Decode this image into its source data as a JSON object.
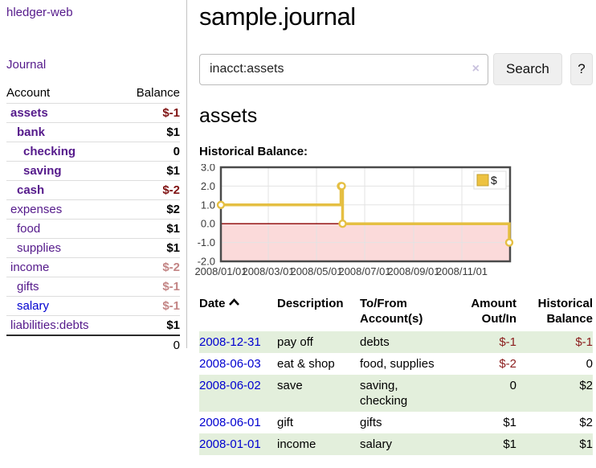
{
  "colors": {
    "link_purple": "#551a8b",
    "link_blue": "#0000d0",
    "negative_red": "#7f1212",
    "negative_soft_red": "#c38585",
    "row_stripe_green": "#e3efdc"
  },
  "sidebar": {
    "brand": "hledger-web",
    "journal_link": "Journal",
    "accounts_table": {
      "headers": {
        "account": "Account",
        "balance": "Balance"
      },
      "rows": [
        {
          "name": "assets",
          "indent": 1,
          "bold": true,
          "balance": "$-1",
          "balance_class": "neg"
        },
        {
          "name": "bank",
          "indent": 2,
          "bold": true,
          "balance": "$1",
          "balance_class": "pos"
        },
        {
          "name": "checking",
          "indent": 3,
          "bold": true,
          "balance": "0",
          "balance_class": "pos"
        },
        {
          "name": "saving",
          "indent": 3,
          "bold": true,
          "balance": "$1",
          "balance_class": "pos"
        },
        {
          "name": "cash",
          "indent": 2,
          "bold": true,
          "balance": "$-2",
          "balance_class": "neg"
        },
        {
          "name": "expenses",
          "indent": 1,
          "bold": false,
          "balance": "$2",
          "balance_class": "pos"
        },
        {
          "name": "food",
          "indent": 2,
          "bold": false,
          "balance": "$1",
          "balance_class": "pos"
        },
        {
          "name": "supplies",
          "indent": 2,
          "bold": false,
          "balance": "$1",
          "balance_class": "pos"
        },
        {
          "name": "income",
          "indent": 1,
          "bold": false,
          "balance": "$-2",
          "balance_class": "neg-soft"
        },
        {
          "name": "gifts",
          "indent": 2,
          "bold": false,
          "balance": "$-1",
          "balance_class": "neg-soft"
        },
        {
          "name": "salary",
          "indent": 2,
          "bold": false,
          "link": "blue",
          "balance": "$-1",
          "balance_class": "neg-soft"
        },
        {
          "name": "liabilities:debts",
          "indent": 1,
          "bold": false,
          "balance": "$1",
          "balance_class": "pos"
        }
      ],
      "total": "0"
    }
  },
  "main": {
    "title": "sample.journal",
    "search": {
      "value": "inacct:assets",
      "clear_icon": "×",
      "button": "Search",
      "help_button": "?"
    },
    "account_heading": "assets",
    "chart_label": "Historical Balance:"
  },
  "chart_data": {
    "type": "line",
    "step": true,
    "title": "Historical Balance",
    "legend": [
      {
        "label": "$",
        "color": "#edc240"
      }
    ],
    "legend_position": "top-right",
    "grid": true,
    "x_range": [
      "2008-01-01",
      "2009-01-01"
    ],
    "y_range": [
      -2,
      3
    ],
    "y_ticks": [
      {
        "label": "3.0",
        "value": 3
      },
      {
        "label": "2.0",
        "value": 2
      },
      {
        "label": "1.0",
        "value": 1
      },
      {
        "label": "0.0",
        "value": 0
      },
      {
        "label": "-1.0",
        "value": -1
      },
      {
        "label": "-2.0",
        "value": -2
      }
    ],
    "x_ticks": [
      {
        "label": "2008/01/01",
        "date": "2008-01-01"
      },
      {
        "label": "2008/03/01",
        "date": "2008-03-01"
      },
      {
        "label": "2008/05/01",
        "date": "2008-05-01"
      },
      {
        "label": "2008/07/01",
        "date": "2008-07-01"
      },
      {
        "label": "2008/09/01",
        "date": "2008-09-01"
      },
      {
        "label": "2008/11/01",
        "date": "2008-11-01"
      }
    ],
    "series": [
      {
        "name": "$",
        "color": "#e5bf42",
        "points": [
          {
            "date": "2008-01-01",
            "value": 1
          },
          {
            "date": "2008-06-01",
            "value": 2
          },
          {
            "date": "2008-06-02",
            "value": 2
          },
          {
            "date": "2008-06-03",
            "value": 0
          },
          {
            "date": "2008-12-31",
            "value": -1
          }
        ]
      }
    ],
    "negative_region_color": "#fbdada",
    "zero_line_color": "#8b0000",
    "grid_color": "#e3e3e3",
    "border_color": "#4a4a4a"
  },
  "transactions": {
    "headers": [
      {
        "lines": [
          "Date"
        ],
        "sortable": true,
        "align": "left"
      },
      {
        "lines": [
          "Description"
        ],
        "align": "left"
      },
      {
        "lines": [
          "To/From",
          "Account(s)"
        ],
        "align": "left"
      },
      {
        "lines": [
          "Amount",
          "Out/In"
        ],
        "align": "right"
      },
      {
        "lines": [
          "Historical",
          "Balance"
        ],
        "align": "right"
      }
    ],
    "rows": [
      {
        "date": "2008-12-31",
        "description": "pay off",
        "accounts": [
          "debts"
        ],
        "amount": "$-1",
        "amount_neg": true,
        "balance": "$-1",
        "balance_neg": true
      },
      {
        "date": "2008-06-03",
        "description": "eat & shop",
        "accounts": [
          "food, supplies"
        ],
        "amount": "$-2",
        "amount_neg": true,
        "balance": "0",
        "balance_neg": false
      },
      {
        "date": "2008-06-02",
        "description": "save",
        "accounts": [
          "saving,",
          "checking"
        ],
        "amount": "0",
        "amount_neg": false,
        "balance": "$2",
        "balance_neg": false
      },
      {
        "date": "2008-06-01",
        "description": "gift",
        "accounts": [
          "gifts"
        ],
        "amount": "$1",
        "amount_neg": false,
        "balance": "$2",
        "balance_neg": false
      },
      {
        "date": "2008-01-01",
        "description": "income",
        "accounts": [
          "salary"
        ],
        "amount": "$1",
        "amount_neg": false,
        "balance": "$1",
        "balance_neg": false
      }
    ]
  }
}
